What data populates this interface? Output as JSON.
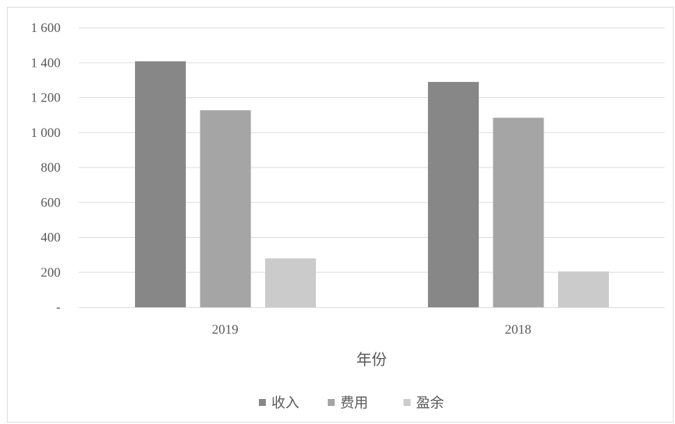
{
  "chart_data": {
    "type": "bar",
    "categories": [
      "2019",
      "2018"
    ],
    "series": [
      {
        "name": "收入",
        "values": [
          1408,
          1290
        ],
        "color": "#878787"
      },
      {
        "name": "费用",
        "values": [
          1128,
          1085
        ],
        "color": "#a5a5a5"
      },
      {
        "name": "盈余",
        "values": [
          280,
          205
        ],
        "color": "#cbcbcb"
      }
    ],
    "ylim": [
      0,
      1600
    ],
    "yticks": [
      {
        "value": 0,
        "label": "-"
      },
      {
        "value": 200,
        "label": "200"
      },
      {
        "value": 400,
        "label": "400"
      },
      {
        "value": 600,
        "label": "600"
      },
      {
        "value": 800,
        "label": "800"
      },
      {
        "value": 1000,
        "label": "1 000"
      },
      {
        "value": 1200,
        "label": "1 200"
      },
      {
        "value": 1400,
        "label": "1 400"
      },
      {
        "value": 1600,
        "label": "1 600"
      }
    ],
    "xlabel": "年份",
    "grid": true,
    "gridline_color": "#d9d9d9",
    "legend_position": "bottom"
  }
}
